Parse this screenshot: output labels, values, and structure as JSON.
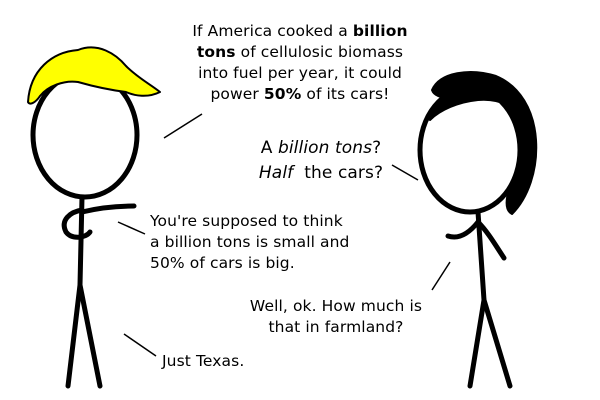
{
  "panel": {
    "speech_1": {
      "line1_a": "If America cooked a ",
      "line1_bold": "billion",
      "line2_bold": "tons",
      "line2_b": " of cellulosic biomass",
      "line3": "into fuel per year, it could",
      "line4_a": "power ",
      "line4_bold": "50%",
      "line4_b": " of its cars!"
    },
    "speech_2": {
      "line1_a": "A ",
      "line1_italic": "billion tons",
      "line1_b": "?",
      "line2_italic": "Half",
      "line2_b": "  the cars?"
    },
    "speech_3": {
      "line1": "You're supposed to think",
      "line2": "a billion tons is small and",
      "line3": "50% of cars is big."
    },
    "speech_4": {
      "line1": "Well, ok. How much is",
      "line2": "that in farmland?"
    },
    "speech_5": {
      "line1": "Just Texas."
    }
  },
  "colors": {
    "hair_blond": "#ffff00",
    "hair_dark": "#000000",
    "ink": "#000000",
    "background": "#ffffff"
  }
}
